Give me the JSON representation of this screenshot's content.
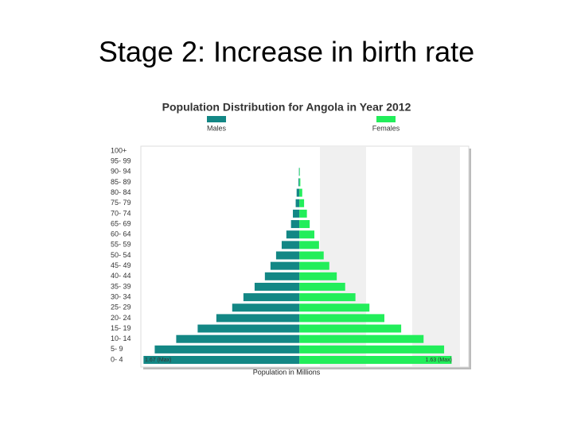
{
  "slide_title": "Stage 2: Increase in birth rate",
  "chart_data": {
    "type": "pyramid",
    "title": "Population Distribution for Angola in Year 2012",
    "x_label": "Population in Millions",
    "categories": [
      "0- 4",
      "5- 9",
      "10- 14",
      "15- 19",
      "20- 24",
      "25- 29",
      "30- 34",
      "35- 39",
      "40- 44",
      "45- 49",
      "50- 54",
      "55- 59",
      "60- 64",
      "65- 69",
      "70- 74",
      "75- 79",
      "80- 84",
      "85- 89",
      "90- 94",
      "95- 99",
      "100+"
    ],
    "series": [
      {
        "name": "Males",
        "color": "#138785",
        "side": "left",
        "values": [
          1.67,
          1.55,
          1.32,
          1.09,
          0.89,
          0.72,
          0.6,
          0.48,
          0.37,
          0.31,
          0.25,
          0.19,
          0.14,
          0.09,
          0.07,
          0.04,
          0.03,
          0.01,
          0.005,
          0,
          0
        ]
      },
      {
        "name": "Females",
        "color": "#22ee5a",
        "side": "right",
        "values": [
          1.63,
          1.55,
          1.33,
          1.09,
          0.91,
          0.75,
          0.6,
          0.49,
          0.4,
          0.32,
          0.26,
          0.21,
          0.16,
          0.11,
          0.08,
          0.05,
          0.03,
          0.01,
          0.005,
          0,
          0
        ]
      }
    ],
    "xlim": [
      -1.69,
      1.72
    ],
    "annotations": [
      "1.67 (Max)",
      "1.63 (Max)"
    ]
  }
}
